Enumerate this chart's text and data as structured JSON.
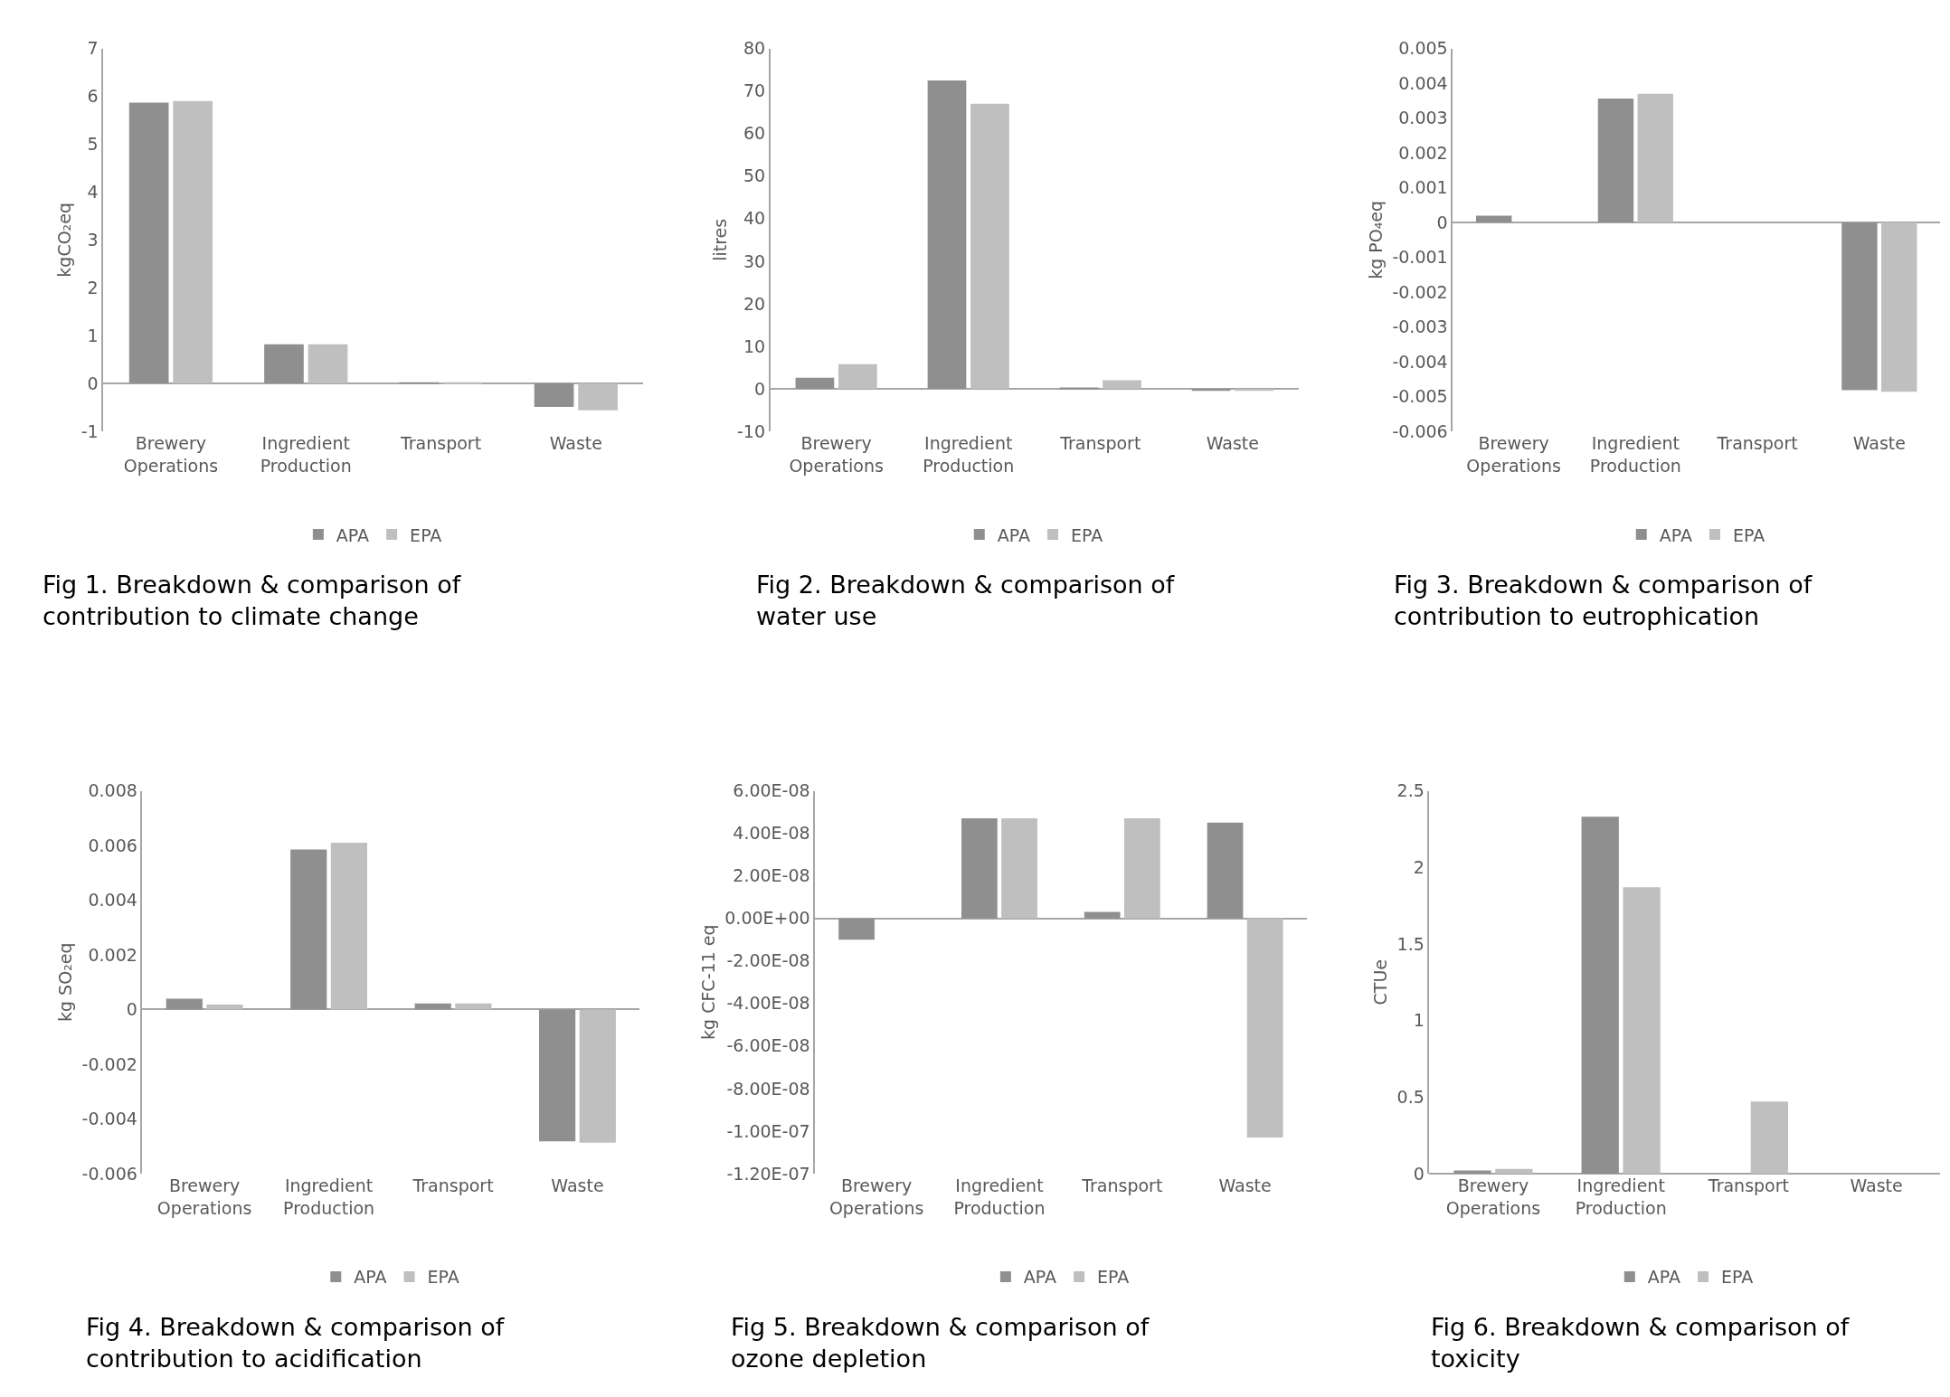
{
  "chart_data": [
    {
      "type": "bar",
      "categories": [
        "Brewery Operations",
        "Ingredient Production",
        "Transport",
        "Waste"
      ],
      "ylabel": "kgCO₂eq",
      "ylim": [
        -1,
        7
      ],
      "yticks": [
        -1,
        0,
        1,
        2,
        3,
        4,
        5,
        6,
        7
      ],
      "legend": "bottom",
      "series": [
        {
          "name": "APA",
          "color": "#8f8f8f",
          "values": [
            5.87,
            0.82,
            0.02,
            -0.49
          ]
        },
        {
          "name": "EPA",
          "color": "#bfbfbf",
          "values": [
            5.9,
            0.82,
            0.02,
            -0.56
          ]
        }
      ],
      "annotations": [
        "Fig 1. Breakdown & comparison of contribution to climate change"
      ]
    },
    {
      "type": "bar",
      "categories": [
        "Brewery Operations",
        "Ingredient Production",
        "Transport",
        "Waste"
      ],
      "ylabel": "litres",
      "ylim": [
        -10,
        80
      ],
      "yticks": [
        -10,
        0,
        10,
        20,
        30,
        40,
        50,
        60,
        70,
        80
      ],
      "legend": "bottom",
      "series": [
        {
          "name": "APA",
          "color": "#8f8f8f",
          "values": [
            2.6,
            72.5,
            0.3,
            -0.5
          ]
        },
        {
          "name": "EPA",
          "color": "#bfbfbf",
          "values": [
            5.8,
            67,
            2,
            -0.5
          ]
        }
      ],
      "annotations": [
        "Fig 2. Breakdown & comparison of water use"
      ]
    },
    {
      "type": "bar",
      "categories": [
        "Brewery Operations",
        "Ingredient Production",
        "Transport",
        "Waste"
      ],
      "ylabel": "kg PO₄eq",
      "ylim": [
        -0.006,
        0.005
      ],
      "yticks": [
        -0.006,
        -0.005,
        -0.004,
        -0.003,
        -0.002,
        -0.001,
        0,
        0.001,
        0.002,
        0.003,
        0.004,
        0.005
      ],
      "legend": "bottom",
      "series": [
        {
          "name": "APA",
          "color": "#8f8f8f",
          "values": [
            0.0002,
            0.00356,
            0,
            -0.00482
          ]
        },
        {
          "name": "EPA",
          "color": "#bfbfbf",
          "values": [
            0,
            0.0037,
            0,
            -0.00486
          ]
        }
      ],
      "annotations": [
        "Fig 3. Breakdown & comparison of contribution to eutrophication"
      ]
    },
    {
      "type": "bar",
      "categories": [
        "Brewery Operations",
        "Ingredient Production",
        "Transport",
        "Waste"
      ],
      "ylabel": "kg SO₂eq",
      "ylim": [
        -0.006,
        0.008
      ],
      "yticks": [
        -0.006,
        -0.004,
        -0.002,
        0,
        0.002,
        0.004,
        0.006,
        0.008
      ],
      "legend": "bottom",
      "series": [
        {
          "name": "APA",
          "color": "#8f8f8f",
          "values": [
            0.0004,
            0.00585,
            0.00022,
            -0.00482
          ]
        },
        {
          "name": "EPA",
          "color": "#bfbfbf",
          "values": [
            0.00018,
            0.0061,
            0.00022,
            -0.00487
          ]
        }
      ],
      "annotations": [
        "Fig 4. Breakdown & comparison of contribution to acidification"
      ]
    },
    {
      "type": "bar",
      "categories": [
        "Brewery Operations",
        "Ingredient Production",
        "Transport",
        "Waste"
      ],
      "ylabel": "kg CFC-11 eq",
      "ylim": [
        -1.2e-07,
        6e-08
      ],
      "yticks": [
        {
          "value": -1.2e-07,
          "label": "-1.20E-07"
        },
        {
          "value": -1e-07,
          "label": "-1.00E-07"
        },
        {
          "value": -8e-08,
          "label": "-8.00E-08"
        },
        {
          "value": -6e-08,
          "label": "-6.00E-08"
        },
        {
          "value": -4e-08,
          "label": "-4.00E-08"
        },
        {
          "value": -2e-08,
          "label": "-2.00E-08"
        },
        {
          "value": 0,
          "label": "0.00E+00"
        },
        {
          "value": 2e-08,
          "label": "2.00E-08"
        },
        {
          "value": 4e-08,
          "label": "4.00E-08"
        },
        {
          "value": 6e-08,
          "label": "6.00E-08"
        }
      ],
      "legend": "bottom",
      "series": [
        {
          "name": "APA",
          "color": "#8f8f8f",
          "values": [
            -1e-08,
            4.7e-08,
            3e-09,
            4.5e-08
          ]
        },
        {
          "name": "EPA",
          "color": "#bfbfbf",
          "values": [
            0,
            4.7e-08,
            4.7e-08,
            -1.03e-07
          ]
        }
      ],
      "annotations": [
        "Fig 5. Breakdown & comparison of ozone depletion"
      ]
    },
    {
      "type": "bar",
      "categories": [
        "Brewery Operations",
        "Ingredient Production",
        "Transport",
        "Waste"
      ],
      "ylabel": "CTUe",
      "ylim": [
        0,
        2.5
      ],
      "yticks": [
        0,
        0.5,
        1,
        1.5,
        2,
        2.5
      ],
      "legend": "bottom",
      "series": [
        {
          "name": "APA",
          "color": "#8f8f8f",
          "values": [
            0.02,
            2.33,
            0,
            0
          ]
        },
        {
          "name": "EPA",
          "color": "#bfbfbf",
          "values": [
            0.03,
            1.87,
            0.47,
            0
          ]
        }
      ],
      "annotations": [
        "Fig 6. Breakdown & comparison of toxicity"
      ]
    }
  ]
}
